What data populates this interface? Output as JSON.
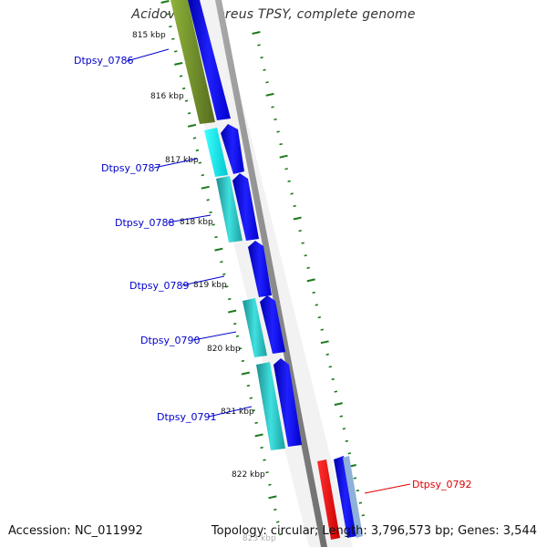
{
  "title": "Acidovorax ebreus TPSY, complete genome",
  "accession_text": "Accession: NC_011992",
  "summary_text": "Topology: circular; Length: 3,796,573 bp; Genes: 3,544",
  "colors": {
    "label_blue": "#0000cc",
    "label_red": "#dd0000",
    "ruler_green": "#1a7a1a",
    "backbone_grey": "#8a8a8a",
    "olive": "#6b8e23",
    "cyan": "#00d8d8",
    "teal": "#20b2aa",
    "blue": "#0000ee",
    "red": "#ee0000",
    "steel_blue": "#4682b4"
  },
  "kbp_ticks": [
    "815 kbp",
    "816 kbp",
    "817 kbp",
    "818 kbp",
    "819 kbp",
    "820 kbp",
    "821 kbp",
    "822 kbp",
    "823 kbp"
  ],
  "gene_labels": [
    {
      "text": "Dtpsy_0786",
      "color": "label_blue"
    },
    {
      "text": "Dtpsy_0787",
      "color": "label_blue"
    },
    {
      "text": "Dtpsy_0788",
      "color": "label_blue"
    },
    {
      "text": "Dtpsy_0789",
      "color": "label_blue"
    },
    {
      "text": "Dtpsy_0790",
      "color": "label_blue"
    },
    {
      "text": "Dtpsy_0791",
      "color": "label_blue"
    },
    {
      "text": "Dtpsy_0792",
      "color": "label_red"
    }
  ]
}
